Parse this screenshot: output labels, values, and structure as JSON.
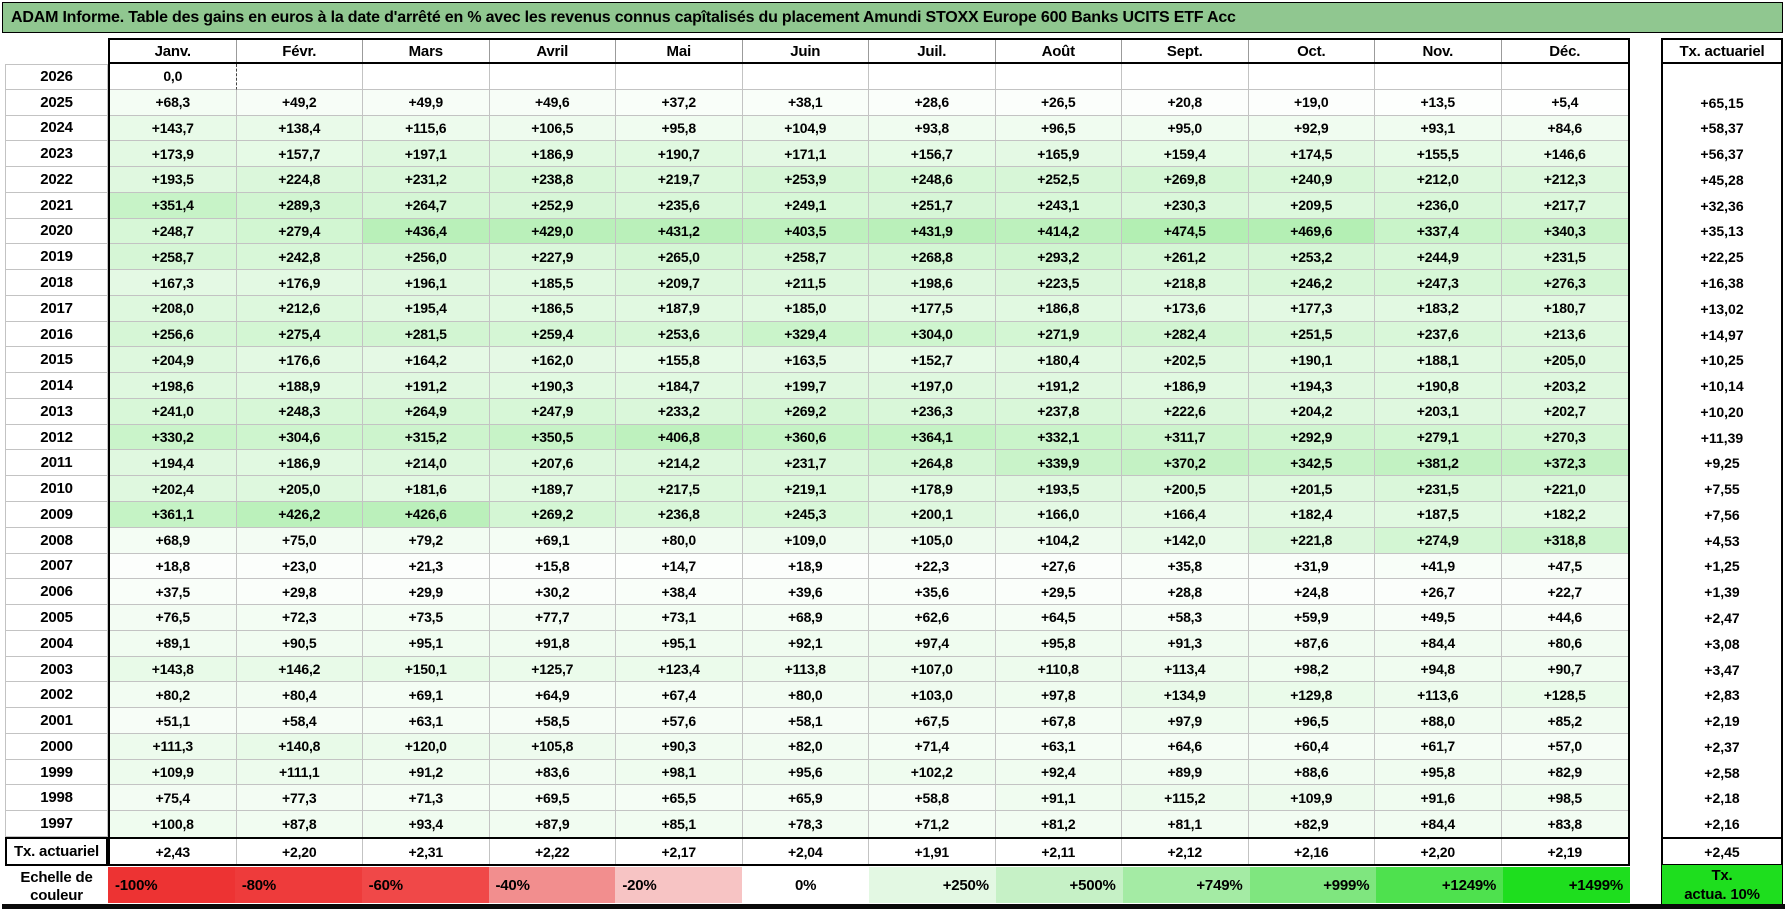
{
  "title": "ADAM Informe. Table des gains en euros à la date d'arrêté en % avec les revenus connus capîtalisés du placement Amundi STOXX Europe 600 Banks UCITS ETF Acc",
  "colors": {
    "title_bg": "#90C790",
    "cell_green_max": "#AFEEAF",
    "grid_line": "#c3c3c3",
    "scale_bright_green": "#1EDE1E"
  },
  "table": {
    "month_headers": [
      "Janv.",
      "Févr.",
      "Mars",
      "Avril",
      "Mai",
      "Juin",
      "Juil.",
      "Août",
      "Sept.",
      "Oct.",
      "Nov.",
      "Déc."
    ],
    "right_header": "Tx. actuariel",
    "footer_label": "Tx. actuariel",
    "rows": [
      {
        "year": "2026",
        "values": [
          "0,0",
          "",
          "",
          "",
          "",
          "",
          "",
          "",
          "",
          "",
          "",
          ""
        ],
        "tx": ""
      },
      {
        "year": "2025",
        "values": [
          "+68,3",
          "+49,2",
          "+49,9",
          "+49,6",
          "+37,2",
          "+38,1",
          "+28,6",
          "+26,5",
          "+20,8",
          "+19,0",
          "+13,5",
          "+5,4"
        ],
        "tx": "+65,15"
      },
      {
        "year": "2024",
        "values": [
          "+143,7",
          "+138,4",
          "+115,6",
          "+106,5",
          "+95,8",
          "+104,9",
          "+93,8",
          "+96,5",
          "+95,0",
          "+92,9",
          "+93,1",
          "+84,6"
        ],
        "tx": "+58,37"
      },
      {
        "year": "2023",
        "values": [
          "+173,9",
          "+157,7",
          "+197,1",
          "+186,9",
          "+190,7",
          "+171,1",
          "+156,7",
          "+165,9",
          "+159,4",
          "+174,5",
          "+155,5",
          "+146,6"
        ],
        "tx": "+56,37"
      },
      {
        "year": "2022",
        "values": [
          "+193,5",
          "+224,8",
          "+231,2",
          "+238,8",
          "+219,7",
          "+253,9",
          "+248,6",
          "+252,5",
          "+269,8",
          "+240,9",
          "+212,0",
          "+212,3"
        ],
        "tx": "+45,28"
      },
      {
        "year": "2021",
        "values": [
          "+351,4",
          "+289,3",
          "+264,7",
          "+252,9",
          "+235,6",
          "+249,1",
          "+251,7",
          "+243,1",
          "+230,3",
          "+209,5",
          "+236,0",
          "+217,7"
        ],
        "tx": "+32,36"
      },
      {
        "year": "2020",
        "values": [
          "+248,7",
          "+279,4",
          "+436,4",
          "+429,0",
          "+431,2",
          "+403,5",
          "+431,9",
          "+414,2",
          "+474,5",
          "+469,6",
          "+337,4",
          "+340,3"
        ],
        "tx": "+35,13"
      },
      {
        "year": "2019",
        "values": [
          "+258,7",
          "+242,8",
          "+256,0",
          "+227,9",
          "+265,0",
          "+258,7",
          "+268,8",
          "+293,2",
          "+261,2",
          "+253,2",
          "+244,9",
          "+231,5"
        ],
        "tx": "+22,25"
      },
      {
        "year": "2018",
        "values": [
          "+167,3",
          "+176,9",
          "+196,1",
          "+185,5",
          "+209,7",
          "+211,5",
          "+198,6",
          "+223,5",
          "+218,8",
          "+246,2",
          "+247,3",
          "+276,3"
        ],
        "tx": "+16,38"
      },
      {
        "year": "2017",
        "values": [
          "+208,0",
          "+212,6",
          "+195,4",
          "+186,5",
          "+187,9",
          "+185,0",
          "+177,5",
          "+186,8",
          "+173,6",
          "+177,3",
          "+183,2",
          "+180,7"
        ],
        "tx": "+13,02"
      },
      {
        "year": "2016",
        "values": [
          "+256,6",
          "+275,4",
          "+281,5",
          "+259,4",
          "+253,6",
          "+329,4",
          "+304,0",
          "+271,9",
          "+282,4",
          "+251,5",
          "+237,6",
          "+213,6"
        ],
        "tx": "+14,97"
      },
      {
        "year": "2015",
        "values": [
          "+204,9",
          "+176,6",
          "+164,2",
          "+162,0",
          "+155,8",
          "+163,5",
          "+152,7",
          "+180,4",
          "+202,5",
          "+190,1",
          "+188,1",
          "+205,0"
        ],
        "tx": "+10,25"
      },
      {
        "year": "2014",
        "values": [
          "+198,6",
          "+188,9",
          "+191,2",
          "+190,3",
          "+184,7",
          "+199,7",
          "+197,0",
          "+191,2",
          "+186,9",
          "+194,3",
          "+190,8",
          "+203,2"
        ],
        "tx": "+10,14"
      },
      {
        "year": "2013",
        "values": [
          "+241,0",
          "+248,3",
          "+264,9",
          "+247,9",
          "+233,2",
          "+269,2",
          "+236,3",
          "+237,8",
          "+222,6",
          "+204,2",
          "+203,1",
          "+202,7"
        ],
        "tx": "+10,20"
      },
      {
        "year": "2012",
        "values": [
          "+330,2",
          "+304,6",
          "+315,2",
          "+350,5",
          "+406,8",
          "+360,6",
          "+364,1",
          "+332,1",
          "+311,7",
          "+292,9",
          "+279,1",
          "+270,3"
        ],
        "tx": "+11,39"
      },
      {
        "year": "2011",
        "values": [
          "+194,4",
          "+186,9",
          "+214,0",
          "+207,6",
          "+214,2",
          "+231,7",
          "+264,8",
          "+339,9",
          "+370,2",
          "+342,5",
          "+381,2",
          "+372,3"
        ],
        "tx": "+9,25"
      },
      {
        "year": "2010",
        "values": [
          "+202,4",
          "+205,0",
          "+181,6",
          "+189,7",
          "+217,5",
          "+219,1",
          "+178,9",
          "+193,5",
          "+200,5",
          "+201,5",
          "+231,5",
          "+221,0"
        ],
        "tx": "+7,55"
      },
      {
        "year": "2009",
        "values": [
          "+361,1",
          "+426,2",
          "+426,6",
          "+269,2",
          "+236,8",
          "+245,3",
          "+200,1",
          "+166,0",
          "+166,4",
          "+182,4",
          "+187,5",
          "+182,2"
        ],
        "tx": "+7,56"
      },
      {
        "year": "2008",
        "values": [
          "+68,9",
          "+75,0",
          "+79,2",
          "+69,1",
          "+80,0",
          "+109,0",
          "+105,0",
          "+104,2",
          "+142,0",
          "+221,8",
          "+274,9",
          "+318,8"
        ],
        "tx": "+4,53"
      },
      {
        "year": "2007",
        "values": [
          "+18,8",
          "+23,0",
          "+21,3",
          "+15,8",
          "+14,7",
          "+18,9",
          "+22,3",
          "+27,6",
          "+35,8",
          "+31,9",
          "+41,9",
          "+47,5"
        ],
        "tx": "+1,25"
      },
      {
        "year": "2006",
        "values": [
          "+37,5",
          "+29,8",
          "+29,9",
          "+30,2",
          "+38,4",
          "+39,6",
          "+35,6",
          "+29,5",
          "+28,8",
          "+24,8",
          "+26,7",
          "+22,7"
        ],
        "tx": "+1,39"
      },
      {
        "year": "2005",
        "values": [
          "+76,5",
          "+72,3",
          "+73,5",
          "+77,7",
          "+73,1",
          "+68,9",
          "+62,6",
          "+64,5",
          "+58,3",
          "+59,9",
          "+49,5",
          "+44,6"
        ],
        "tx": "+2,47"
      },
      {
        "year": "2004",
        "values": [
          "+89,1",
          "+90,5",
          "+95,1",
          "+91,8",
          "+95,1",
          "+92,1",
          "+97,4",
          "+95,8",
          "+91,3",
          "+87,6",
          "+84,4",
          "+80,6"
        ],
        "tx": "+3,08"
      },
      {
        "year": "2003",
        "values": [
          "+143,8",
          "+146,2",
          "+150,1",
          "+125,7",
          "+123,4",
          "+113,8",
          "+107,0",
          "+110,8",
          "+113,4",
          "+98,2",
          "+94,8",
          "+90,7"
        ],
        "tx": "+3,47"
      },
      {
        "year": "2002",
        "values": [
          "+80,2",
          "+80,4",
          "+69,1",
          "+64,9",
          "+67,4",
          "+80,0",
          "+103,0",
          "+97,8",
          "+134,9",
          "+129,8",
          "+113,6",
          "+128,5"
        ],
        "tx": "+2,83"
      },
      {
        "year": "2001",
        "values": [
          "+51,1",
          "+58,4",
          "+63,1",
          "+58,5",
          "+57,6",
          "+58,1",
          "+67,5",
          "+67,8",
          "+97,9",
          "+96,5",
          "+88,0",
          "+85,2"
        ],
        "tx": "+2,19"
      },
      {
        "year": "2000",
        "values": [
          "+111,3",
          "+140,8",
          "+120,0",
          "+105,8",
          "+90,3",
          "+82,0",
          "+71,4",
          "+63,1",
          "+64,6",
          "+60,4",
          "+61,7",
          "+57,0"
        ],
        "tx": "+2,37"
      },
      {
        "year": "1999",
        "values": [
          "+109,9",
          "+111,1",
          "+91,2",
          "+83,6",
          "+98,1",
          "+95,6",
          "+102,2",
          "+92,4",
          "+89,9",
          "+88,6",
          "+95,8",
          "+82,9"
        ],
        "tx": "+2,58"
      },
      {
        "year": "1998",
        "values": [
          "+75,4",
          "+77,3",
          "+71,3",
          "+69,5",
          "+65,5",
          "+65,9",
          "+58,8",
          "+91,1",
          "+115,2",
          "+109,9",
          "+91,6",
          "+98,5"
        ],
        "tx": "+2,18"
      },
      {
        "year": "1997",
        "values": [
          "+100,8",
          "+87,8",
          "+93,4",
          "+87,9",
          "+85,1",
          "+78,3",
          "+71,2",
          "+81,2",
          "+81,1",
          "+82,9",
          "+84,4",
          "+83,8"
        ],
        "tx": "+2,16"
      }
    ],
    "footer_values": [
      "+2,43",
      "+2,20",
      "+2,31",
      "+2,22",
      "+2,17",
      "+2,04",
      "+1,91",
      "+2,11",
      "+2,12",
      "+2,16",
      "+2,20",
      "+2,19"
    ],
    "footer_tx": "+2,45"
  },
  "scale": {
    "label_line1": "Echelle de",
    "label_line2": "couleur",
    "cells": [
      {
        "label": "-100%",
        "color": "#ED3333"
      },
      {
        "label": "-80%",
        "color": "#EE3B3B"
      },
      {
        "label": "-60%",
        "color": "#F04848"
      },
      {
        "label": "-40%",
        "color": "#F28E8E"
      },
      {
        "label": "-20%",
        "color": "#F7C4C4"
      },
      {
        "label": "0%",
        "color": "#FFFFFF"
      },
      {
        "label": "+250%",
        "color": "#E3F8E3"
      },
      {
        "label": "+500%",
        "color": "#C6F1C6"
      },
      {
        "label": "+749%",
        "color": "#A4EBA4"
      },
      {
        "label": "+999%",
        "color": "#7FE67F"
      },
      {
        "label": "+1249%",
        "color": "#4EE14E"
      },
      {
        "label": "+1499%",
        "color": "#1EDE1E"
      }
    ],
    "right_box_line1": "Tx.",
    "right_box_line2": "actua. 10%"
  }
}
